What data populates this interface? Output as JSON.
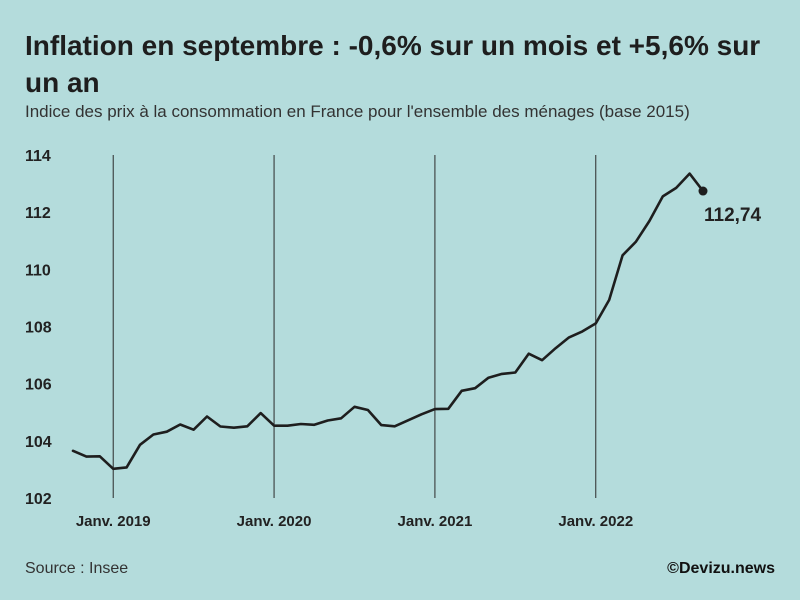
{
  "chart_data": {
    "type": "line",
    "title": "Inflation en septembre : -0,6% sur un mois et +5,6% sur un an",
    "subtitle": "Indice des prix à la consommation en France pour l'ensemble des ménages (base 2015)",
    "ylim": [
      102,
      114
    ],
    "yticks": [
      "102",
      "104",
      "106",
      "108",
      "110",
      "112",
      "114"
    ],
    "x_start_month": "2018-10",
    "x_end_month": "2022-09",
    "xticks": [
      {
        "label": "Janv. 2019",
        "month_index": 3
      },
      {
        "label": "Janv. 2020",
        "month_index": 15
      },
      {
        "label": "Janv. 2021",
        "month_index": 27
      },
      {
        "label": "Janv. 2022",
        "month_index": 39
      }
    ],
    "values": [
      103.65,
      103.45,
      103.46,
      103.02,
      103.07,
      103.86,
      104.22,
      104.32,
      104.57,
      104.39,
      104.85,
      104.5,
      104.46,
      104.51,
      104.97,
      104.53,
      104.53,
      104.59,
      104.56,
      104.71,
      104.79,
      105.19,
      105.08,
      104.55,
      104.51,
      104.72,
      104.93,
      105.11,
      105.12,
      105.75,
      105.84,
      106.21,
      106.34,
      106.39,
      107.05,
      106.82,
      107.24,
      107.62,
      107.83,
      108.11,
      108.93,
      110.49,
      110.97,
      111.69,
      112.55,
      112.85,
      113.35,
      112.74
    ],
    "last_value_label": "112,74",
    "colors": {
      "line": "#1e1e1e",
      "gridline": "#2b2b2b",
      "background": "#b4dcdc"
    }
  },
  "footer": {
    "source": "Source : Insee",
    "credit": "©Devizu.news"
  }
}
